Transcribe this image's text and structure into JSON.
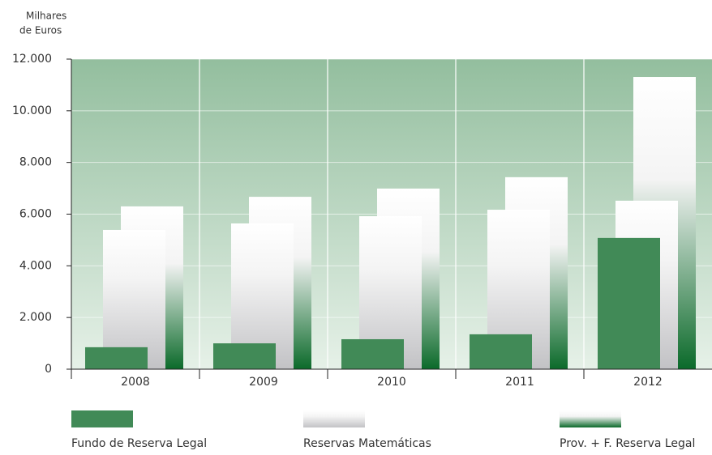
{
  "chart_data": {
    "type": "bar",
    "y_label": [
      "Milhares",
      "de Euros"
    ],
    "categories": [
      "2008",
      "2009",
      "2010",
      "2011",
      "2012"
    ],
    "series": [
      {
        "name": "Fundo de Reserva Legal",
        "color": "#418a57",
        "fill_style": "solid",
        "values": [
          850,
          1000,
          1160,
          1350,
          5080
        ]
      },
      {
        "name": "Reservas Matemáticas",
        "color": "#c2c2c5",
        "fill_style": "gradient",
        "values": [
          5390,
          5640,
          5920,
          6170,
          6520
        ]
      },
      {
        "name": "Prov. + F. Reserva Legal",
        "color": "#0b6a2a",
        "fill_style": "gradient",
        "values": [
          6300,
          6670,
          6990,
          7430,
          11310
        ]
      }
    ],
    "ylim": [
      0,
      12000
    ],
    "yticks": [
      0,
      {
        "value": 2000,
        "label": "2.000"
      },
      {
        "value": 4000,
        "label": "4.000"
      },
      {
        "value": 6000,
        "label": "6.000"
      },
      {
        "value": 8000,
        "label": "8.000"
      },
      {
        "value": 10000,
        "label": "10.000"
      },
      {
        "value": 12000,
        "label": "12.000"
      }
    ],
    "grid": true
  }
}
